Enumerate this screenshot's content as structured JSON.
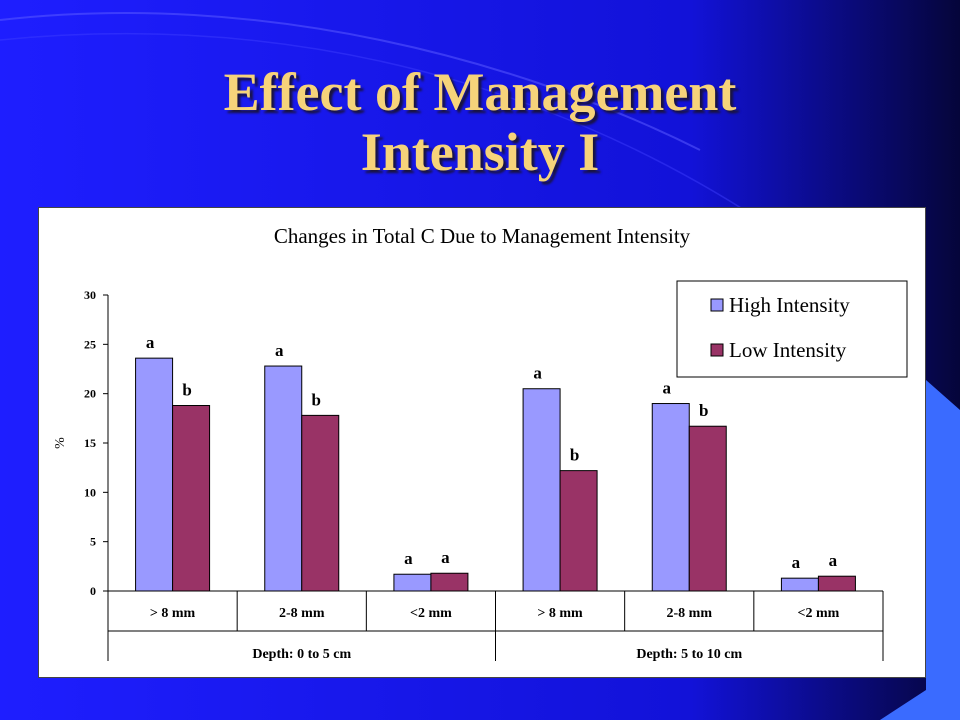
{
  "slide": {
    "title_line1": "Effect of Management",
    "title_line2": "Intensity I"
  },
  "colors": {
    "background": "#1a1aff",
    "title": "#f6d37a",
    "high": "#9999ff",
    "low": "#993366"
  },
  "chart_data": {
    "type": "bar",
    "title": "Changes in Total C Due to Management Intensity",
    "xlabel": "",
    "ylabel": "%",
    "ylim": [
      0,
      30
    ],
    "yticks": [
      0,
      5,
      10,
      15,
      20,
      25,
      30
    ],
    "grid": false,
    "legend": "top-right",
    "categories": [
      "> 8 mm",
      "2-8 mm",
      "<2 mm",
      "> 8 mm",
      "2-8 mm",
      "<2 mm"
    ],
    "groups": [
      {
        "label": "Depth: 0 to 5 cm",
        "categories": 3
      },
      {
        "label": "Depth: 5 to 10 cm",
        "categories": 3
      }
    ],
    "series": [
      {
        "name": "High Intensity",
        "values": [
          23.6,
          22.8,
          1.7,
          20.5,
          19.0,
          1.3
        ],
        "labels": [
          "a",
          "a",
          "a",
          "a",
          "a",
          "a"
        ]
      },
      {
        "name": "Low Intensity",
        "values": [
          18.8,
          17.8,
          1.8,
          12.2,
          16.7,
          1.5
        ],
        "labels": [
          "b",
          "b",
          "a",
          "b",
          "b",
          "a"
        ]
      }
    ]
  }
}
